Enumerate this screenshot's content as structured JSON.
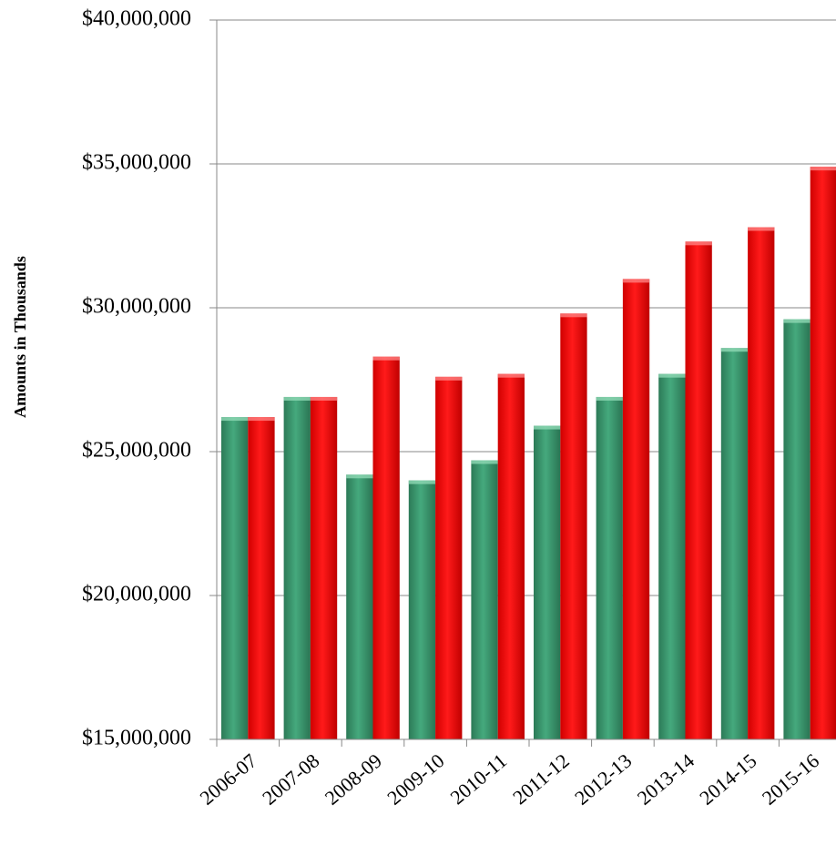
{
  "chart_data": {
    "type": "bar",
    "y_label": "Amounts in Thousands",
    "categories": [
      "2006-07",
      "2007-08",
      "2008-09",
      "2009-10",
      "2010-11",
      "2011-12",
      "2012-13",
      "2013-14",
      "2014-15",
      "2015-16"
    ],
    "series": [
      {
        "color": "#3a9a70",
        "values": [
          26200000,
          26900000,
          24200000,
          24000000,
          24700000,
          25900000,
          26900000,
          27700000,
          28600000,
          29600000
        ]
      },
      {
        "color": "#ff0000",
        "values": [
          26200000,
          26900000,
          28300000,
          27600000,
          27700000,
          29800000,
          31000000,
          32300000,
          32800000,
          34900000
        ]
      }
    ],
    "ylim": [
      15000000,
      40000000
    ],
    "yticks": [
      {
        "value": 15000000,
        "label": "$15,000,000"
      },
      {
        "value": 20000000,
        "label": "$20,000,000"
      },
      {
        "value": 25000000,
        "label": "$25,000,000"
      },
      {
        "value": 30000000,
        "label": "$30,000,000"
      },
      {
        "value": 35000000,
        "label": "$35,000,000"
      },
      {
        "value": 40000000,
        "label": "$40,000,000"
      }
    ],
    "grid": true
  }
}
